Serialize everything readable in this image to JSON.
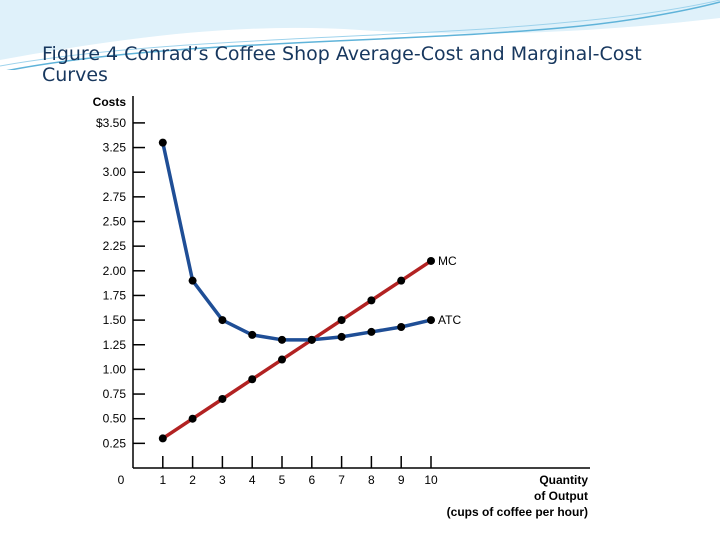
{
  "slide": {
    "title": "Figure 4 Conrad’s Coffee Shop Average-Cost and Marginal-Cost Curves"
  },
  "colors": {
    "mc_line": "#b22222",
    "atc_line": "#1f4e96",
    "marker": "#000000",
    "title_text": "#17375e",
    "decor_swoosh": "#5fb3d9"
  },
  "chart_data": {
    "type": "line",
    "title": "",
    "ylabel": "Costs",
    "xlabel": [
      "Quantity",
      "of Output",
      "(cups of coffee per hour)"
    ],
    "x_ticks": [
      "0",
      "1",
      "2",
      "3",
      "4",
      "5",
      "6",
      "7",
      "8",
      "9",
      "10"
    ],
    "y_ticks": [
      "0.25",
      "0.50",
      "0.75",
      "1.00",
      "1.25",
      "1.50",
      "1.75",
      "2.00",
      "2.25",
      "2.50",
      "2.75",
      "3.00",
      "3.25",
      "$3.50"
    ],
    "xlim": [
      0,
      10
    ],
    "ylim": [
      0,
      3.5
    ],
    "grid": false,
    "legend": "none",
    "series": [
      {
        "name": "MC",
        "x": [
          1,
          2,
          3,
          4,
          5,
          6,
          7,
          8,
          9,
          10
        ],
        "values": [
          0.3,
          0.5,
          0.7,
          0.9,
          1.1,
          1.3,
          1.5,
          1.7,
          1.9,
          2.1
        ]
      },
      {
        "name": "ATC",
        "x": [
          1,
          2,
          3,
          4,
          5,
          6,
          7,
          8,
          9,
          10
        ],
        "values": [
          3.3,
          1.9,
          1.5,
          1.35,
          1.3,
          1.3,
          1.33,
          1.38,
          1.43,
          1.5
        ]
      }
    ]
  }
}
